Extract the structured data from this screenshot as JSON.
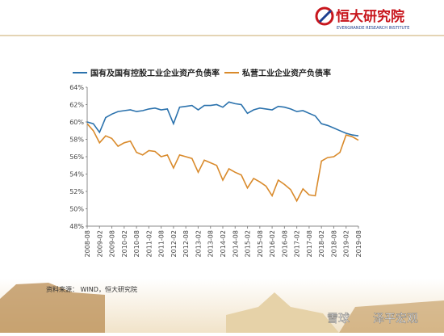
{
  "header": {
    "brand": "恒大研究院",
    "brand_en": "EVERGRANDE RESEARCH INSTITUTE"
  },
  "source": "资料来源： WIND，恒大研究院",
  "watermark": {
    "site": "雪球",
    "account": "泽平宏观"
  },
  "chart_data": {
    "type": "line",
    "x": [
      "2008-08",
      "2008-11",
      "2009-02",
      "2009-05",
      "2009-08",
      "2009-11",
      "2010-02",
      "2010-05",
      "2010-08",
      "2010-11",
      "2011-02",
      "2011-05",
      "2011-08",
      "2011-11",
      "2012-02",
      "2012-05",
      "2012-08",
      "2012-11",
      "2013-02",
      "2013-05",
      "2013-08",
      "2013-11",
      "2014-02",
      "2014-05",
      "2014-08",
      "2014-11",
      "2015-02",
      "2015-05",
      "2015-08",
      "2015-11",
      "2016-02",
      "2016-05",
      "2016-08",
      "2016-11",
      "2017-02",
      "2017-05",
      "2017-08",
      "2017-11",
      "2018-02",
      "2018-05",
      "2018-08",
      "2018-11",
      "2019-02",
      "2019-05",
      "2019-08"
    ],
    "xticks": [
      "2008-08",
      "2009-02",
      "2009-08",
      "2010-02",
      "2010-08",
      "2011-02",
      "2011-08",
      "2012-02",
      "2012-08",
      "2013-02",
      "2013-08",
      "2014-02",
      "2014-08",
      "2015-02",
      "2015-08",
      "2016-02",
      "2016-08",
      "2017-02",
      "2017-08",
      "2018-02",
      "2018-08",
      "2019-02",
      "2019-08"
    ],
    "series": [
      {
        "name": "国有及国有控股工业企业资产负债率",
        "color": "#2b72ad",
        "values": [
          60.0,
          59.8,
          58.8,
          60.5,
          60.9,
          61.2,
          61.3,
          61.4,
          61.2,
          61.3,
          61.5,
          61.6,
          61.4,
          61.5,
          59.8,
          61.7,
          61.8,
          61.9,
          61.4,
          61.9,
          61.9,
          62.0,
          61.7,
          62.3,
          62.1,
          62.0,
          61.0,
          61.4,
          61.6,
          61.5,
          61.4,
          61.8,
          61.7,
          61.5,
          61.2,
          61.3,
          61.0,
          60.7,
          59.8,
          59.6,
          59.3,
          59.0,
          58.7,
          58.5,
          58.4
        ]
      },
      {
        "name": "私营工业企业资产负债率",
        "color": "#d98a2b",
        "values": [
          59.8,
          59.0,
          57.6,
          58.4,
          58.1,
          57.2,
          57.6,
          57.8,
          56.5,
          56.2,
          56.7,
          56.6,
          56.0,
          56.2,
          54.7,
          56.2,
          56.0,
          55.8,
          54.2,
          55.6,
          55.3,
          55.0,
          53.3,
          54.6,
          54.2,
          53.9,
          52.4,
          53.5,
          53.1,
          52.6,
          51.5,
          53.3,
          52.8,
          52.2,
          50.9,
          52.3,
          51.6,
          51.5,
          55.5,
          55.9,
          56.0,
          56.5,
          58.5,
          58.3,
          57.9
        ]
      }
    ],
    "ylim": [
      48,
      64
    ],
    "yticks": [
      {
        "value": 48,
        "label": "48%"
      },
      {
        "value": 50,
        "label": "50%"
      },
      {
        "value": 52,
        "label": "52%"
      },
      {
        "value": 54,
        "label": "54%"
      },
      {
        "value": 56,
        "label": "56%"
      },
      {
        "value": 58,
        "label": "58%"
      },
      {
        "value": 60,
        "label": "60%"
      },
      {
        "value": 62,
        "label": "62%"
      },
      {
        "value": 64,
        "label": "64%"
      }
    ]
  }
}
